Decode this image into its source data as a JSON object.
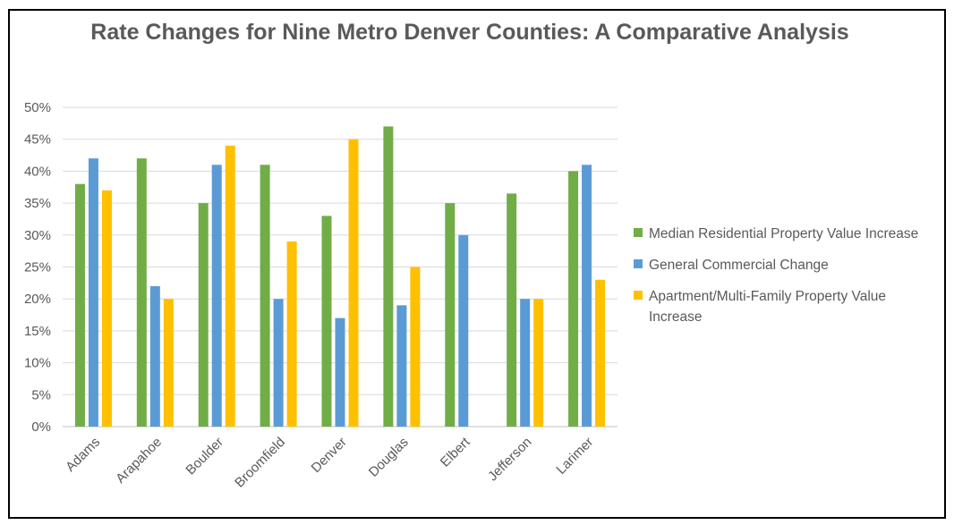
{
  "chart_data": {
    "type": "bar",
    "title": "Rate Changes for Nine Metro Denver Counties: A Comparative Analysis",
    "categories": [
      "Adams",
      "Arapahoe",
      "Boulder",
      "Broomfield",
      "Denver",
      "Douglas",
      "Elbert",
      "Jefferson",
      "Larimer"
    ],
    "series": [
      {
        "name": "Median Residential Property Value Increase",
        "color": "#70AD47",
        "values": [
          38,
          42,
          35,
          41,
          33,
          47,
          35,
          36.5,
          40
        ]
      },
      {
        "name": "General Commercial Change",
        "color": "#5B9BD5",
        "values": [
          42,
          22,
          41,
          20,
          17,
          19,
          30,
          20,
          41
        ]
      },
      {
        "name": "Apartment/Multi-Family Property Value Increase",
        "color": "#FFC000",
        "values": [
          37,
          20,
          44,
          29,
          45,
          25,
          null,
          20,
          23
        ]
      }
    ],
    "yticks": [
      "0%",
      "5%",
      "10%",
      "15%",
      "20%",
      "25%",
      "30%",
      "35%",
      "40%",
      "45%",
      "50%"
    ],
    "ylim": [
      0,
      50
    ],
    "grid": true,
    "legend_position": "right"
  }
}
